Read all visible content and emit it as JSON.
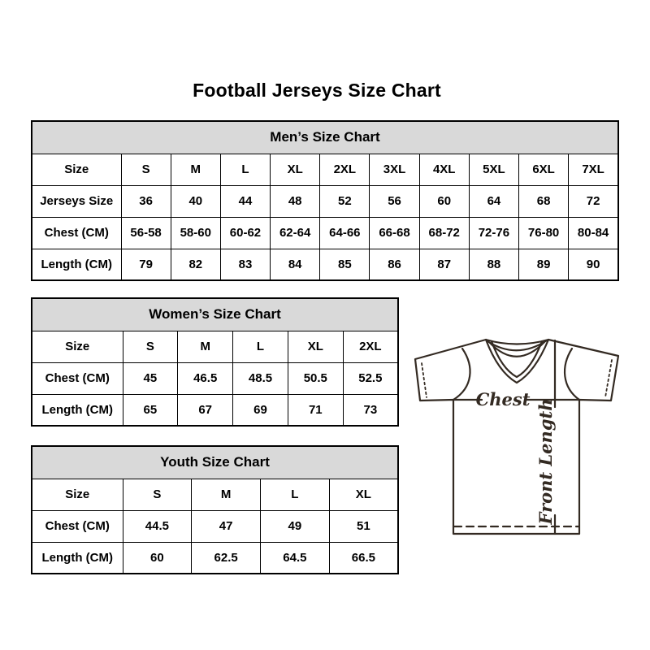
{
  "page": {
    "title": "Football Jerseys Size Chart"
  },
  "tables": {
    "men": {
      "title": "Men’s Size Chart",
      "rows": [
        {
          "label": "Size",
          "values": [
            "S",
            "M",
            "L",
            "XL",
            "2XL",
            "3XL",
            "4XL",
            "5XL",
            "6XL",
            "7XL"
          ]
        },
        {
          "label": "Jerseys Size",
          "values": [
            "36",
            "40",
            "44",
            "48",
            "52",
            "56",
            "60",
            "64",
            "68",
            "72"
          ]
        },
        {
          "label": "Chest (CM)",
          "values": [
            "56-58",
            "58-60",
            "60-62",
            "62-64",
            "64-66",
            "66-68",
            "68-72",
            "72-76",
            "76-80",
            "80-84"
          ]
        },
        {
          "label": "Length (CM)",
          "values": [
            "79",
            "82",
            "83",
            "84",
            "85",
            "86",
            "87",
            "88",
            "89",
            "90"
          ]
        }
      ]
    },
    "women": {
      "title": "Women’s Size Chart",
      "rows": [
        {
          "label": "Size",
          "values": [
            "S",
            "M",
            "L",
            "XL",
            "2XL"
          ]
        },
        {
          "label": "Chest (CM)",
          "values": [
            "45",
            "46.5",
            "48.5",
            "50.5",
            "52.5"
          ]
        },
        {
          "label": "Length (CM)",
          "values": [
            "65",
            "67",
            "69",
            "71",
            "73"
          ]
        }
      ]
    },
    "youth": {
      "title": "Youth Size Chart",
      "rows": [
        {
          "label": "Size",
          "values": [
            "S",
            "M",
            "L",
            "XL"
          ]
        },
        {
          "label": "Chest (CM)",
          "values": [
            "44.5",
            "47",
            "49",
            "51"
          ]
        },
        {
          "label": "Length (CM)",
          "values": [
            "60",
            "62.5",
            "64.5",
            "66.5"
          ]
        }
      ]
    }
  },
  "diagram": {
    "chest_label": "Chest",
    "front_length_label": "Front Length"
  },
  "colors": {
    "table_header_bg": "#d9d9d9",
    "table_border": "#000000",
    "jersey_outline": "#332a22",
    "text": "#000000",
    "background": "#ffffff"
  }
}
